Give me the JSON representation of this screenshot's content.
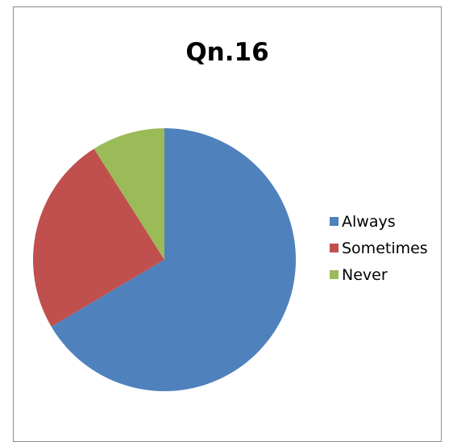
{
  "chart_data": {
    "type": "pie",
    "title": "Qn.16",
    "categories": [
      "Always",
      "Sometimes",
      "Never"
    ],
    "values": [
      66.5,
      24.5,
      9.0
    ],
    "colors": [
      "#4f81bd",
      "#c0504d",
      "#9bbb59"
    ],
    "legend_position": "right",
    "start_angle_deg": 0,
    "direction": "clockwise"
  },
  "legend": {
    "items": [
      {
        "label": "Always",
        "color": "#4f81bd"
      },
      {
        "label": "Sometimes",
        "color": "#c0504d"
      },
      {
        "label": "Never",
        "color": "#9bbb59"
      }
    ]
  }
}
